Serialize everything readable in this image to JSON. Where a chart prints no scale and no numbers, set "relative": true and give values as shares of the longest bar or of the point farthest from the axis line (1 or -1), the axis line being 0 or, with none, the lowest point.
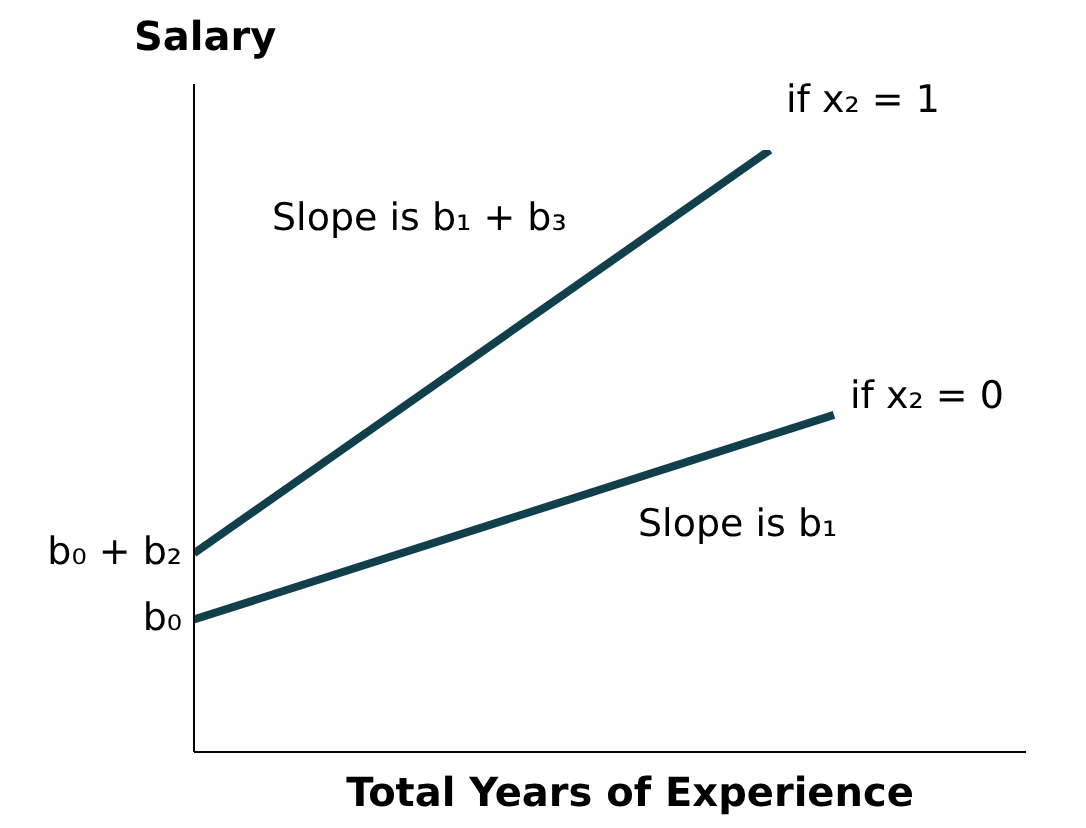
{
  "chart_data": {
    "type": "line",
    "relative": true,
    "ylabel": "Salary",
    "xlabel": "Total Years of Experience",
    "categories": [
      null,
      null,
      null,
      null,
      null,
      null,
      null,
      null,
      null,
      null,
      null,
      null,
      null,
      null
    ],
    "series": [
      {
        "name": "if x₂ = 1",
        "color": "#113f4c",
        "values": [
          0.33,
          null,
          null,
          null,
          null,
          null,
          null,
          null,
          null,
          1,
          null,
          null,
          null,
          null
        ]
      },
      {
        "name": "if x₂ = 0",
        "color": "#113f4c",
        "values": [
          0.22,
          null,
          null,
          null,
          null,
          null,
          null,
          null,
          null,
          null,
          0.56,
          null,
          null,
          null
        ]
      }
    ],
    "annotations": [
      "Slope is b₁ + b₃",
      "Slope is b₁",
      "b₀ + b₂",
      "b₀"
    ],
    "grid": false,
    "legend": false,
    "marker": "none",
    "line_style": "solid"
  }
}
